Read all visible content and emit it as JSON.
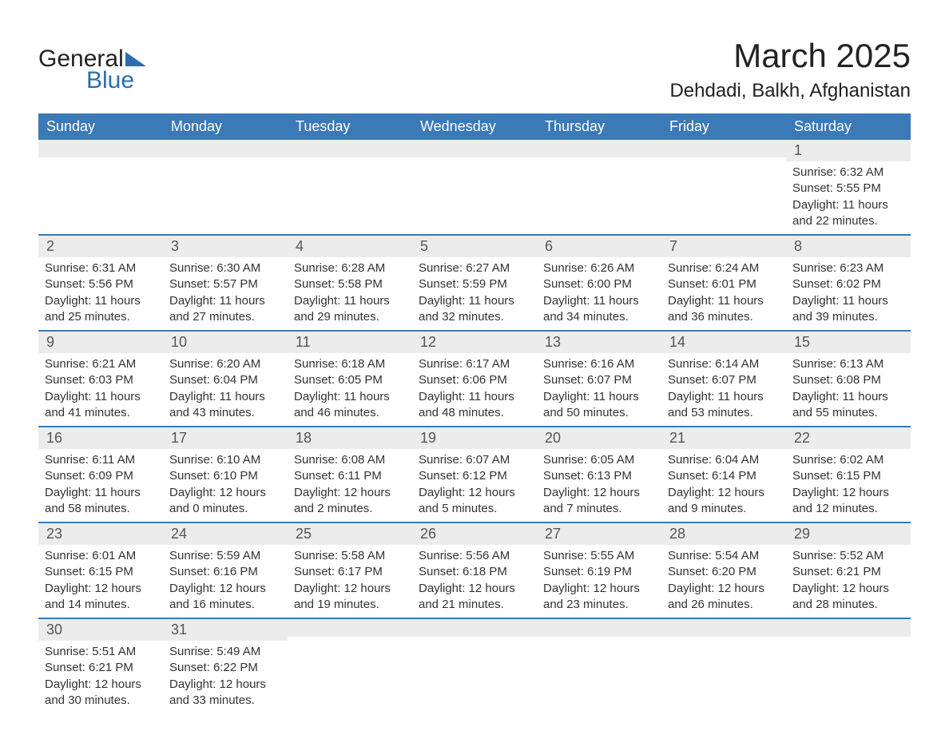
{
  "brand": {
    "word1": "General",
    "word2": "Blue"
  },
  "header": {
    "month_title": "March 2025",
    "location": "Dehdadi, Balkh, Afghanistan"
  },
  "colors": {
    "accent": "#3b79b7",
    "header_bg": "#3b79b7",
    "daynum_bg": "#ececec",
    "text": "#333333",
    "background": "#ffffff"
  },
  "calendar": {
    "type": "table",
    "columns": [
      "Sunday",
      "Monday",
      "Tuesday",
      "Wednesday",
      "Thursday",
      "Friday",
      "Saturday"
    ],
    "weeks": [
      [
        null,
        null,
        null,
        null,
        null,
        null,
        {
          "day": "1",
          "sunrise": "Sunrise: 6:32 AM",
          "sunset": "Sunset: 5:55 PM",
          "daylight": "Daylight: 11 hours and 22 minutes."
        }
      ],
      [
        {
          "day": "2",
          "sunrise": "Sunrise: 6:31 AM",
          "sunset": "Sunset: 5:56 PM",
          "daylight": "Daylight: 11 hours and 25 minutes."
        },
        {
          "day": "3",
          "sunrise": "Sunrise: 6:30 AM",
          "sunset": "Sunset: 5:57 PM",
          "daylight": "Daylight: 11 hours and 27 minutes."
        },
        {
          "day": "4",
          "sunrise": "Sunrise: 6:28 AM",
          "sunset": "Sunset: 5:58 PM",
          "daylight": "Daylight: 11 hours and 29 minutes."
        },
        {
          "day": "5",
          "sunrise": "Sunrise: 6:27 AM",
          "sunset": "Sunset: 5:59 PM",
          "daylight": "Daylight: 11 hours and 32 minutes."
        },
        {
          "day": "6",
          "sunrise": "Sunrise: 6:26 AM",
          "sunset": "Sunset: 6:00 PM",
          "daylight": "Daylight: 11 hours and 34 minutes."
        },
        {
          "day": "7",
          "sunrise": "Sunrise: 6:24 AM",
          "sunset": "Sunset: 6:01 PM",
          "daylight": "Daylight: 11 hours and 36 minutes."
        },
        {
          "day": "8",
          "sunrise": "Sunrise: 6:23 AM",
          "sunset": "Sunset: 6:02 PM",
          "daylight": "Daylight: 11 hours and 39 minutes."
        }
      ],
      [
        {
          "day": "9",
          "sunrise": "Sunrise: 6:21 AM",
          "sunset": "Sunset: 6:03 PM",
          "daylight": "Daylight: 11 hours and 41 minutes."
        },
        {
          "day": "10",
          "sunrise": "Sunrise: 6:20 AM",
          "sunset": "Sunset: 6:04 PM",
          "daylight": "Daylight: 11 hours and 43 minutes."
        },
        {
          "day": "11",
          "sunrise": "Sunrise: 6:18 AM",
          "sunset": "Sunset: 6:05 PM",
          "daylight": "Daylight: 11 hours and 46 minutes."
        },
        {
          "day": "12",
          "sunrise": "Sunrise: 6:17 AM",
          "sunset": "Sunset: 6:06 PM",
          "daylight": "Daylight: 11 hours and 48 minutes."
        },
        {
          "day": "13",
          "sunrise": "Sunrise: 6:16 AM",
          "sunset": "Sunset: 6:07 PM",
          "daylight": "Daylight: 11 hours and 50 minutes."
        },
        {
          "day": "14",
          "sunrise": "Sunrise: 6:14 AM",
          "sunset": "Sunset: 6:07 PM",
          "daylight": "Daylight: 11 hours and 53 minutes."
        },
        {
          "day": "15",
          "sunrise": "Sunrise: 6:13 AM",
          "sunset": "Sunset: 6:08 PM",
          "daylight": "Daylight: 11 hours and 55 minutes."
        }
      ],
      [
        {
          "day": "16",
          "sunrise": "Sunrise: 6:11 AM",
          "sunset": "Sunset: 6:09 PM",
          "daylight": "Daylight: 11 hours and 58 minutes."
        },
        {
          "day": "17",
          "sunrise": "Sunrise: 6:10 AM",
          "sunset": "Sunset: 6:10 PM",
          "daylight": "Daylight: 12 hours and 0 minutes."
        },
        {
          "day": "18",
          "sunrise": "Sunrise: 6:08 AM",
          "sunset": "Sunset: 6:11 PM",
          "daylight": "Daylight: 12 hours and 2 minutes."
        },
        {
          "day": "19",
          "sunrise": "Sunrise: 6:07 AM",
          "sunset": "Sunset: 6:12 PM",
          "daylight": "Daylight: 12 hours and 5 minutes."
        },
        {
          "day": "20",
          "sunrise": "Sunrise: 6:05 AM",
          "sunset": "Sunset: 6:13 PM",
          "daylight": "Daylight: 12 hours and 7 minutes."
        },
        {
          "day": "21",
          "sunrise": "Sunrise: 6:04 AM",
          "sunset": "Sunset: 6:14 PM",
          "daylight": "Daylight: 12 hours and 9 minutes."
        },
        {
          "day": "22",
          "sunrise": "Sunrise: 6:02 AM",
          "sunset": "Sunset: 6:15 PM",
          "daylight": "Daylight: 12 hours and 12 minutes."
        }
      ],
      [
        {
          "day": "23",
          "sunrise": "Sunrise: 6:01 AM",
          "sunset": "Sunset: 6:15 PM",
          "daylight": "Daylight: 12 hours and 14 minutes."
        },
        {
          "day": "24",
          "sunrise": "Sunrise: 5:59 AM",
          "sunset": "Sunset: 6:16 PM",
          "daylight": "Daylight: 12 hours and 16 minutes."
        },
        {
          "day": "25",
          "sunrise": "Sunrise: 5:58 AM",
          "sunset": "Sunset: 6:17 PM",
          "daylight": "Daylight: 12 hours and 19 minutes."
        },
        {
          "day": "26",
          "sunrise": "Sunrise: 5:56 AM",
          "sunset": "Sunset: 6:18 PM",
          "daylight": "Daylight: 12 hours and 21 minutes."
        },
        {
          "day": "27",
          "sunrise": "Sunrise: 5:55 AM",
          "sunset": "Sunset: 6:19 PM",
          "daylight": "Daylight: 12 hours and 23 minutes."
        },
        {
          "day": "28",
          "sunrise": "Sunrise: 5:54 AM",
          "sunset": "Sunset: 6:20 PM",
          "daylight": "Daylight: 12 hours and 26 minutes."
        },
        {
          "day": "29",
          "sunrise": "Sunrise: 5:52 AM",
          "sunset": "Sunset: 6:21 PM",
          "daylight": "Daylight: 12 hours and 28 minutes."
        }
      ],
      [
        {
          "day": "30",
          "sunrise": "Sunrise: 5:51 AM",
          "sunset": "Sunset: 6:21 PM",
          "daylight": "Daylight: 12 hours and 30 minutes."
        },
        {
          "day": "31",
          "sunrise": "Sunrise: 5:49 AM",
          "sunset": "Sunset: 6:22 PM",
          "daylight": "Daylight: 12 hours and 33 minutes."
        },
        null,
        null,
        null,
        null,
        null
      ]
    ]
  }
}
